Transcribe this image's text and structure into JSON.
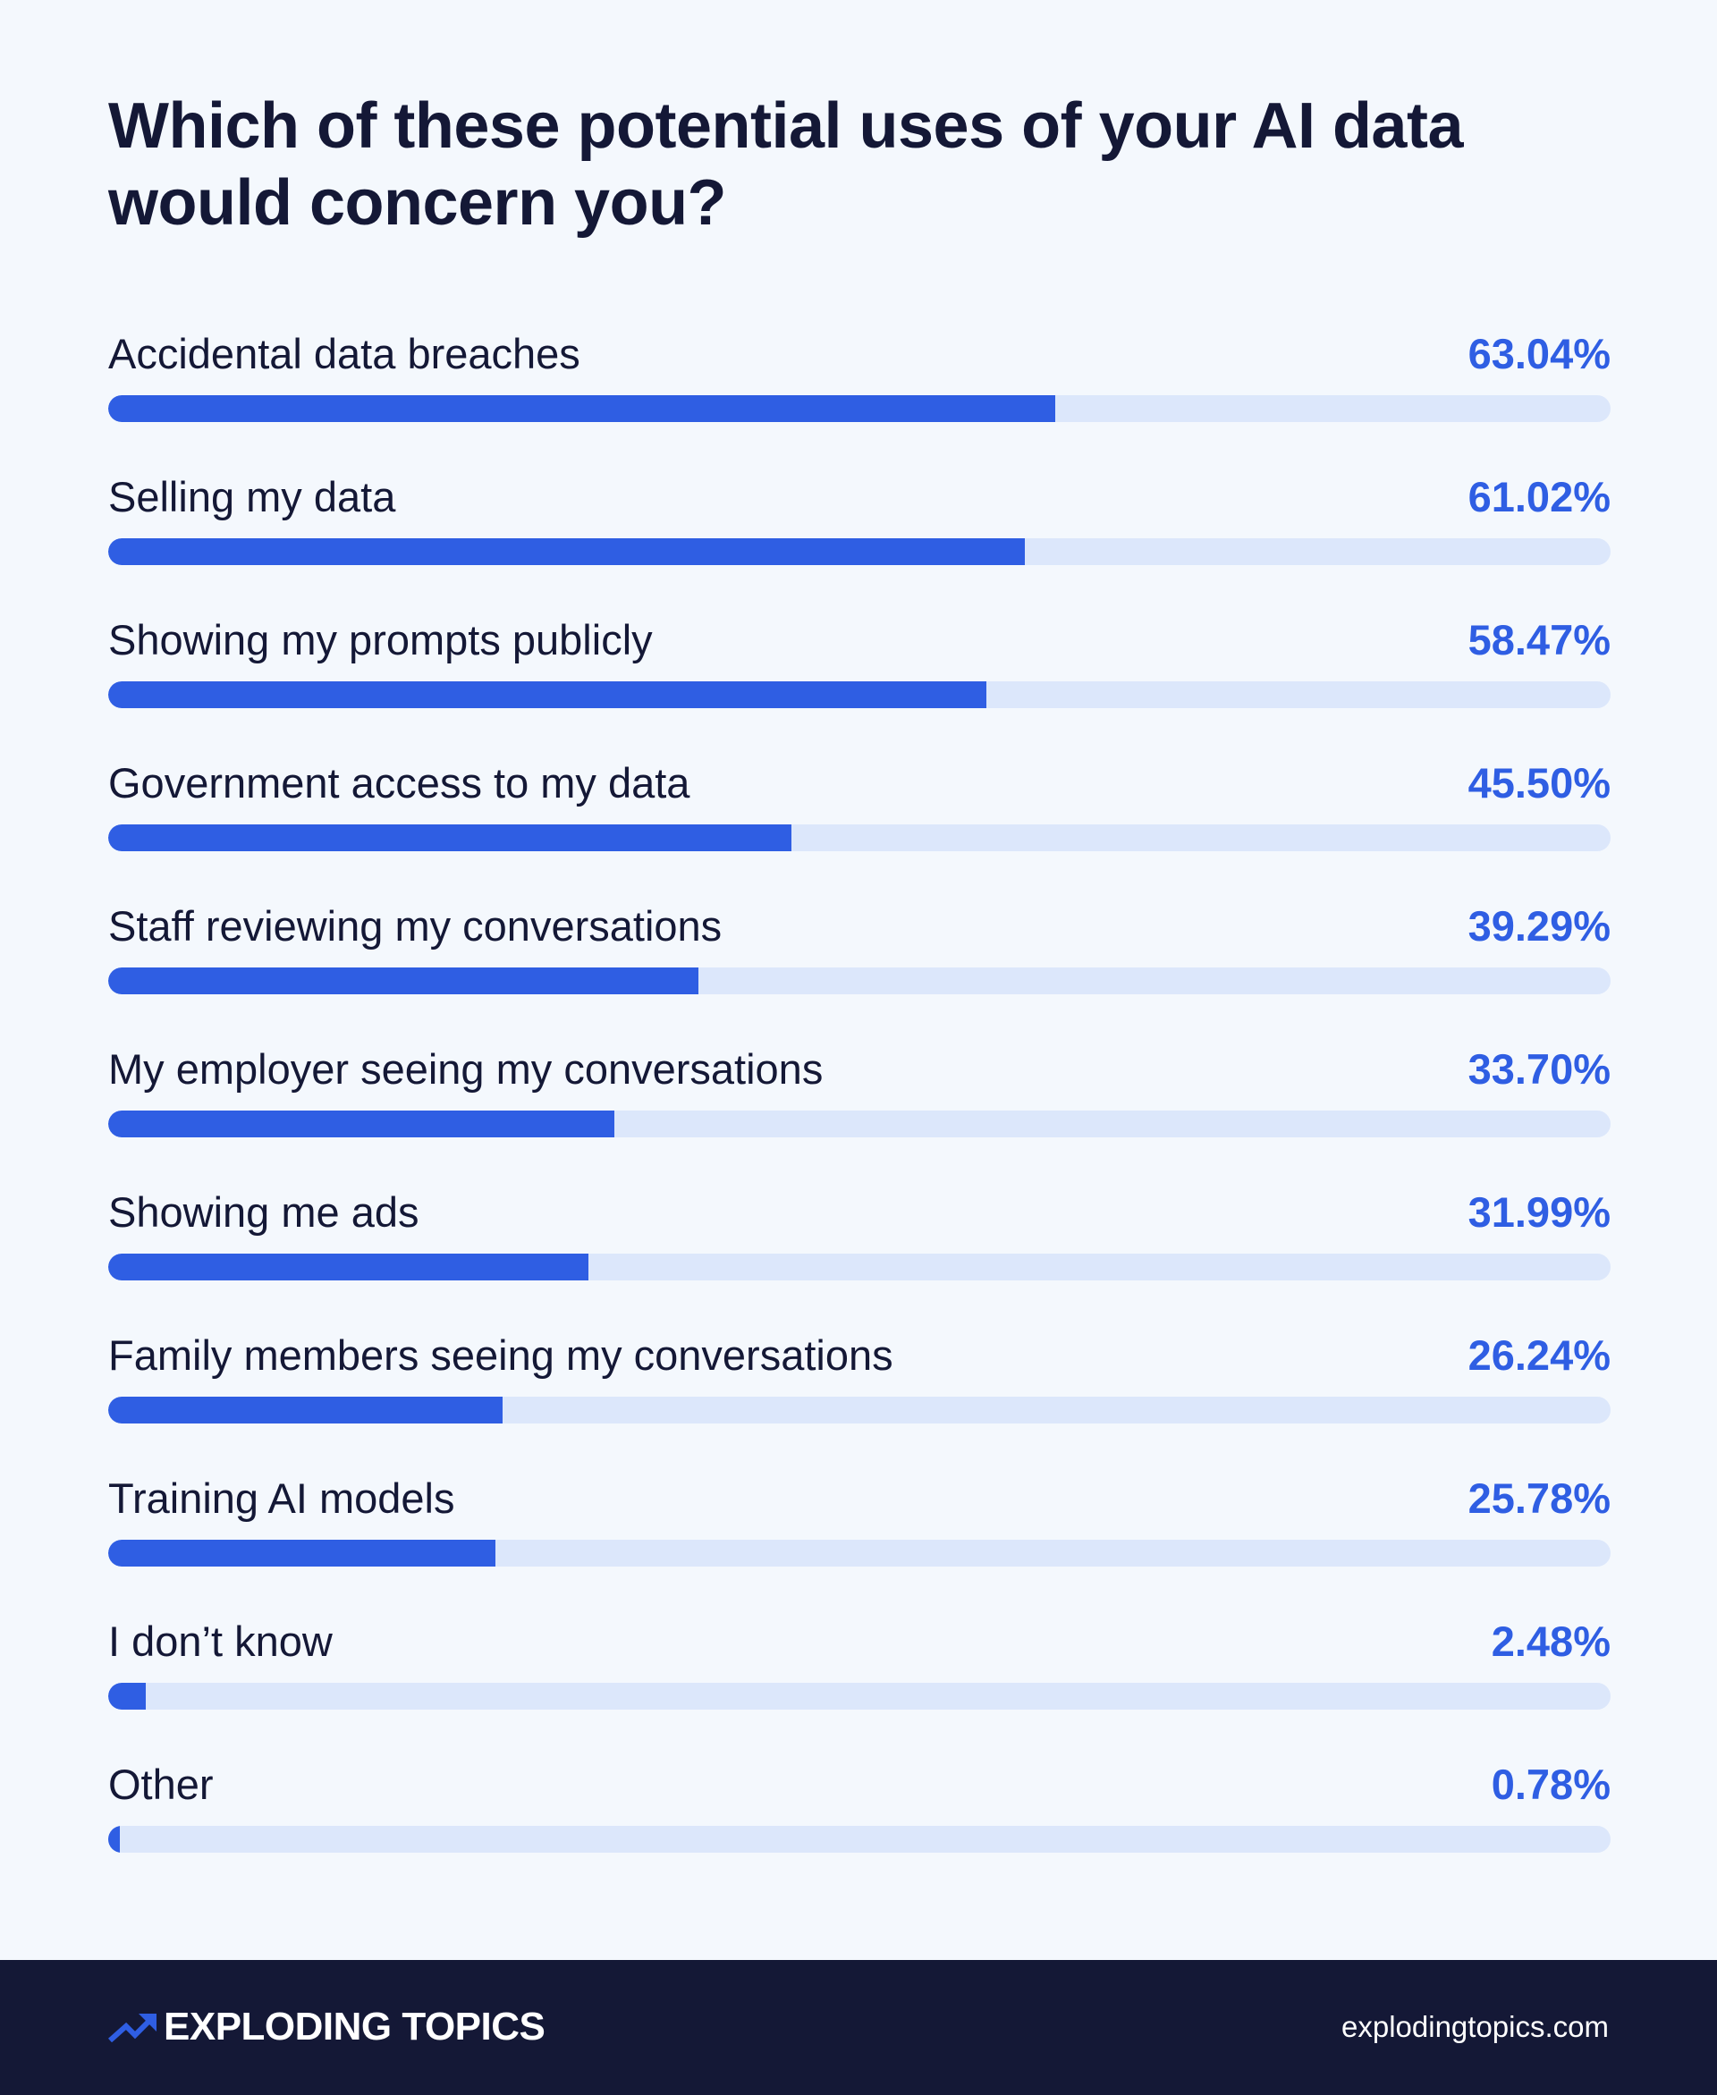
{
  "chart_data": {
    "type": "bar",
    "orientation": "horizontal",
    "title": "Which of these potential uses of your AI data would concern you?",
    "categories": [
      "Accidental data breaches",
      "Selling my data",
      "Showing my prompts publicly",
      "Government access to my data",
      "Staff reviewing my conversations",
      "My employer seeing my conversations",
      "Showing me ads",
      "Family members seeing my conversations",
      "Training AI models",
      "I don’t know",
      "Other"
    ],
    "values": [
      63.04,
      61.02,
      58.47,
      45.5,
      39.29,
      33.7,
      31.99,
      26.24,
      25.78,
      2.48,
      0.78
    ],
    "value_labels": [
      "63.04%",
      "61.02%",
      "58.47%",
      "45.50%",
      "39.29%",
      "33.70%",
      "31.99%",
      "26.24%",
      "25.78%",
      "2.48%",
      "0.78%"
    ],
    "xlim": [
      0,
      100
    ],
    "grid": false,
    "colors": {
      "bar": "#2f5ee3",
      "track": "#dce7fb",
      "value_text": "#2f5ee3"
    }
  },
  "footer": {
    "brand": "EXPLODING TOPICS",
    "website": "explodingtopics.com",
    "logo_icon": "trending-up-arrow-icon"
  }
}
